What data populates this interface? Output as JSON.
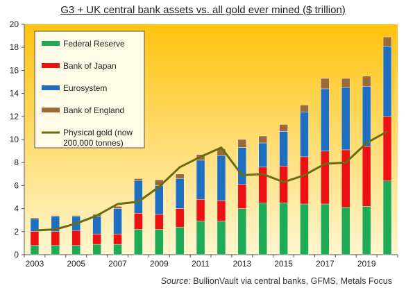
{
  "title": "G3 + UK central bank assets vs. all gold ever mined ($ trillion)",
  "source_label": "Source:",
  "source_text": "BullionVault via central banks, GFMS, Metals Focus",
  "colors": {
    "fed": "#1faa55",
    "boj": "#ee1111",
    "euro": "#1f6fc0",
    "boe": "#9a6a3a",
    "gold": "#6b6b12",
    "bg_top": "#ffc20e",
    "bg_bottom": "#fff6d0",
    "legend_bg": "#fffbe6"
  },
  "chart_data": {
    "type": "bar",
    "stacked": true,
    "x": [
      2003,
      2004,
      2005,
      2006,
      2007,
      2008,
      2009,
      2010,
      2011,
      2012,
      2013,
      2014,
      2015,
      2016,
      2017,
      2018,
      2019,
      2020
    ],
    "x_tick_labels": [
      "2003",
      "2005",
      "2007",
      "2009",
      "2011",
      "2013",
      "2015",
      "2017",
      "2019"
    ],
    "ylim": [
      0,
      20
    ],
    "y_ticks": [
      0,
      2,
      4,
      6,
      8,
      10,
      12,
      14,
      16,
      18,
      20
    ],
    "grid": false,
    "legend_position": "top-left",
    "series": [
      {
        "name": "Federal Reserve",
        "key": "fed",
        "values": [
          0.8,
          0.8,
          0.8,
          0.9,
          0.9,
          2.2,
          2.2,
          2.4,
          2.9,
          2.9,
          4.0,
          4.5,
          4.5,
          4.4,
          4.4,
          4.1,
          4.2,
          6.4
        ]
      },
      {
        "name": "Bank of Japan",
        "key": "boj",
        "values": [
          1.2,
          1.2,
          1.3,
          0.9,
          0.9,
          1.4,
          1.3,
          1.6,
          1.9,
          1.8,
          2.1,
          3.1,
          3.2,
          4.1,
          4.6,
          5.0,
          5.2,
          5.6
        ]
      },
      {
        "name": "Eurosystem",
        "key": "euro",
        "values": [
          1.1,
          1.3,
          1.2,
          1.5,
          2.2,
          2.8,
          2.5,
          2.6,
          3.4,
          3.9,
          3.2,
          2.1,
          3.0,
          3.9,
          5.4,
          5.4,
          5.2,
          6.1
        ]
      },
      {
        "name": "Bank of England",
        "key": "boe",
        "values": [
          0.1,
          0.1,
          0.1,
          0.2,
          0.2,
          0.2,
          0.5,
          0.4,
          0.5,
          0.6,
          0.7,
          0.6,
          0.6,
          0.6,
          0.9,
          0.8,
          0.9,
          0.8
        ]
      }
    ],
    "line": {
      "name": "Physical gold (now 200,000 tonnes)",
      "key": "gold",
      "values": [
        2.1,
        2.2,
        2.7,
        3.4,
        4.4,
        4.6,
        5.9,
        7.6,
        8.5,
        9.3,
        6.9,
        7.0,
        6.3,
        6.9,
        7.9,
        8.0,
        9.7,
        10.7
      ]
    }
  }
}
